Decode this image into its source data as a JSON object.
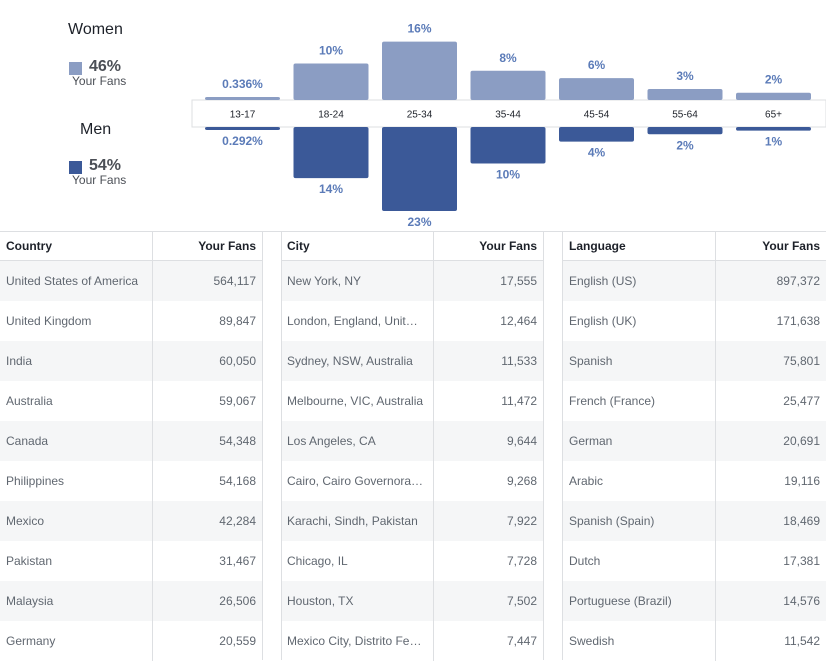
{
  "legend": {
    "women": {
      "label": "Women",
      "percent": "46%",
      "sub": "Your Fans",
      "color": "#8b9dc3"
    },
    "men": {
      "label": "Men",
      "percent": "54%",
      "sub": "Your Fans",
      "color": "#3b5998"
    }
  },
  "chart_data": {
    "type": "bar",
    "categories": [
      "13-17",
      "18-24",
      "25-34",
      "35-44",
      "45-54",
      "55-64",
      "65+"
    ],
    "series": [
      {
        "name": "Women",
        "values": [
          0.336,
          10,
          16,
          8,
          6,
          3,
          2
        ],
        "labels": [
          "0.336%",
          "10%",
          "16%",
          "8%",
          "6%",
          "3%",
          "2%"
        ],
        "color": "#8b9dc3"
      },
      {
        "name": "Men",
        "values": [
          0.292,
          14,
          23,
          10,
          4,
          2,
          1
        ],
        "labels": [
          "0.292%",
          "14%",
          "23%",
          "10%",
          "4%",
          "2%",
          "1%"
        ],
        "color": "#3b5998"
      }
    ],
    "xlabel": "",
    "ylabel": ""
  },
  "tables": {
    "country": {
      "headers": [
        "Country",
        "Your Fans"
      ],
      "rows": [
        [
          "United States of America",
          "564,117"
        ],
        [
          "United Kingdom",
          "89,847"
        ],
        [
          "India",
          "60,050"
        ],
        [
          "Australia",
          "59,067"
        ],
        [
          "Canada",
          "54,348"
        ],
        [
          "Philippines",
          "54,168"
        ],
        [
          "Mexico",
          "42,284"
        ],
        [
          "Pakistan",
          "31,467"
        ],
        [
          "Malaysia",
          "26,506"
        ],
        [
          "Germany",
          "20,559"
        ]
      ]
    },
    "city": {
      "headers": [
        "City",
        "Your Fans"
      ],
      "rows": [
        [
          "New York, NY",
          "17,555"
        ],
        [
          "London, England, Unit…",
          "12,464"
        ],
        [
          "Sydney, NSW, Australia",
          "11,533"
        ],
        [
          "Melbourne, VIC, Australia",
          "11,472"
        ],
        [
          "Los Angeles, CA",
          "9,644"
        ],
        [
          "Cairo, Cairo Governora…",
          "9,268"
        ],
        [
          "Karachi, Sindh, Pakistan",
          "7,922"
        ],
        [
          "Chicago, IL",
          "7,728"
        ],
        [
          "Houston, TX",
          "7,502"
        ],
        [
          "Mexico City, Distrito Fe…",
          "7,447"
        ]
      ]
    },
    "language": {
      "headers": [
        "Language",
        "Your Fans"
      ],
      "rows": [
        [
          "English (US)",
          "897,372"
        ],
        [
          "English (UK)",
          "171,638"
        ],
        [
          "Spanish",
          "75,801"
        ],
        [
          "French (France)",
          "25,477"
        ],
        [
          "German",
          "20,691"
        ],
        [
          "Arabic",
          "19,116"
        ],
        [
          "Spanish (Spain)",
          "18,469"
        ],
        [
          "Dutch",
          "17,381"
        ],
        [
          "Portuguese (Brazil)",
          "14,576"
        ],
        [
          "Swedish",
          "11,542"
        ]
      ]
    }
  }
}
